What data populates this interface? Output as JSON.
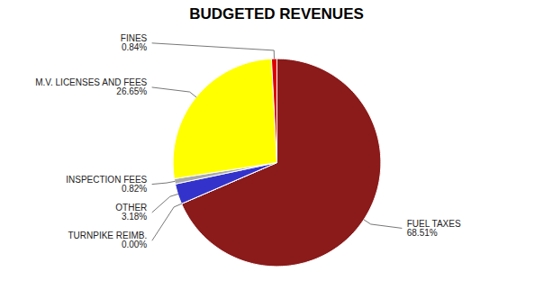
{
  "chart_data": {
    "type": "pie",
    "title": "BUDGETED REVENUES",
    "categories": [
      "FUEL TAXES",
      "TURNPIKE REIMB.",
      "OTHER",
      "INSPECTION FEES",
      "M.V. LICENSES AND FEES",
      "FINES"
    ],
    "values": [
      68.51,
      0.001,
      3.18,
      0.82,
      26.65,
      0.84
    ],
    "value_labels": [
      "68.51%",
      "0.00%",
      "3.18%",
      "0.82%",
      "26.65%",
      "0.84%"
    ],
    "colors": [
      "#8B1A1A",
      "#8B1A1A",
      "#3333CC",
      "#AAAAAA",
      "#FFFF00",
      "#DD0000"
    ],
    "data_labels": true
  }
}
